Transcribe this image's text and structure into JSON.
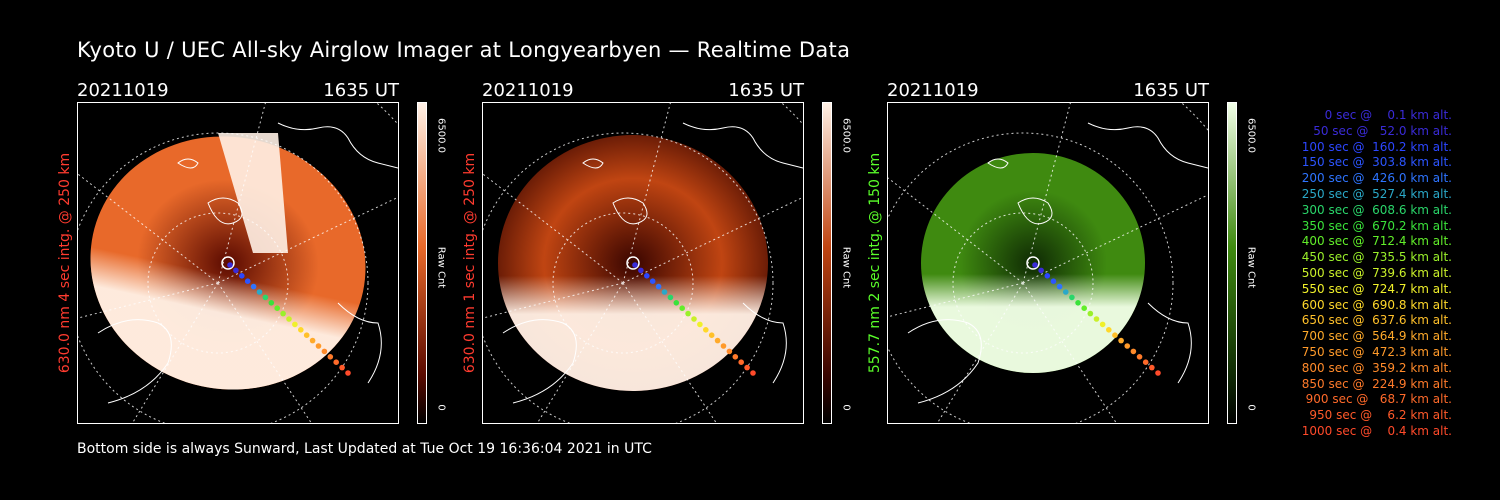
{
  "title": "Kyoto U / UEC All-sky Airglow Imager at Longyearbyen — Realtime Data",
  "footer": "Bottom side is always Sunward, Last Updated at Tue Oct 19 16:36:04 2021 in UTC",
  "panels": [
    {
      "date": "20211019",
      "time": "1635 UT",
      "side_label": "630.0 nm 4 sec intg. @ 250 km",
      "side_label_color": "#ff3b2f",
      "colorbar_top": "6500.0",
      "colorbar_mid": "Raw Cnt",
      "colorbar_bottom": "0",
      "color_high": "#fff1e6",
      "color_mid": "#e8692a",
      "color_low": "#5a0a00"
    },
    {
      "date": "20211019",
      "time": "1635 UT",
      "side_label": "630.0 nm 1 sec intg. @ 250 km",
      "side_label_color": "#ff3b2f",
      "colorbar_top": "6500.0",
      "colorbar_mid": "Raw Cnt",
      "colorbar_bottom": "0",
      "color_high": "#fff1e6",
      "color_mid": "#c04512",
      "color_low": "#3a0500"
    },
    {
      "date": "20211019",
      "time": "1635 UT",
      "side_label": "557.7 nm 2 sec intg. @ 150 km",
      "side_label_color": "#5aff2a",
      "colorbar_top": "6500.0",
      "colorbar_mid": "Raw Cnt",
      "colorbar_bottom": "0",
      "color_high": "#f2ffe8",
      "color_mid": "#3f8a10",
      "color_low": "#0f2a04"
    }
  ],
  "legend": [
    {
      "text": "   0 sec @    0.1 km alt.",
      "color": "#3a2bd8"
    },
    {
      "text": "  50 sec @   52.0 km alt.",
      "color": "#3a2bd8"
    },
    {
      "text": " 100 sec @  160.2 km alt.",
      "color": "#2c46ff"
    },
    {
      "text": " 150 sec @  303.8 km alt.",
      "color": "#2c55ff"
    },
    {
      "text": " 200 sec @  426.0 km alt.",
      "color": "#2e74ff"
    },
    {
      "text": " 250 sec @  527.4 km alt.",
      "color": "#2aa8c8"
    },
    {
      "text": " 300 sec @  608.6 km alt.",
      "color": "#2ad66a"
    },
    {
      "text": " 350 sec @  670.2 km alt.",
      "color": "#3ae23a"
    },
    {
      "text": " 400 sec @  712.4 km alt.",
      "color": "#62ee2a"
    },
    {
      "text": " 450 sec @  735.5 km alt.",
      "color": "#9af02a"
    },
    {
      "text": " 500 sec @  739.6 km alt.",
      "color": "#caf02a"
    },
    {
      "text": " 550 sec @  724.7 km alt.",
      "color": "#f0f02a"
    },
    {
      "text": " 600 sec @  690.8 km alt.",
      "color": "#ffd82a"
    },
    {
      "text": " 650 sec @  637.6 km alt.",
      "color": "#ffc02a"
    },
    {
      "text": " 700 sec @  564.9 km alt.",
      "color": "#ffaa2a"
    },
    {
      "text": " 750 sec @  472.3 km alt.",
      "color": "#ff9a2a"
    },
    {
      "text": " 800 sec @  359.2 km alt.",
      "color": "#ff8a2a"
    },
    {
      "text": " 850 sec @  224.9 km alt.",
      "color": "#ff7a2a"
    },
    {
      "text": " 900 sec @   68.7 km alt.",
      "color": "#ff6a2a"
    },
    {
      "text": " 950 sec @    6.2 km alt.",
      "color": "#ff5a2a"
    },
    {
      "text": "1000 sec @    0.4 km alt.",
      "color": "#ff4a2a"
    }
  ]
}
